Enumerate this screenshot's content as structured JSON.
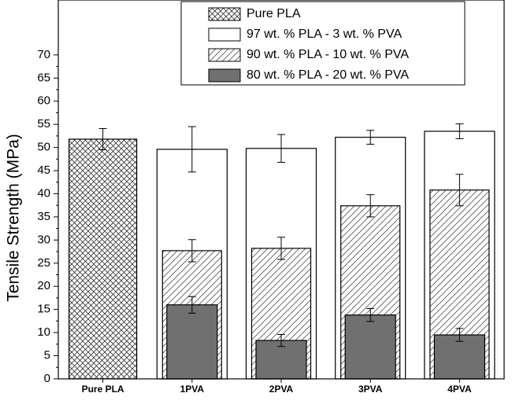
{
  "chart_data": {
    "type": "bar",
    "y_label": "Tensile Strength (MPa)",
    "categories": [
      "Pure PLA",
      "1PVA",
      "2PVA",
      "3PVA",
      "4PVA"
    ],
    "series": [
      {
        "name": "Pure PLA",
        "color": "#ffffff",
        "pattern": "crosshatch",
        "values": [
          51.8,
          null,
          null,
          null,
          null
        ],
        "errors": [
          2.3,
          null,
          null,
          null,
          null
        ]
      },
      {
        "name": "97 wt. % PLA - 3 wt. % PVA",
        "color": "#ffffff",
        "pattern": "none",
        "values": [
          null,
          49.6,
          49.8,
          52.2,
          53.5
        ],
        "errors": [
          null,
          4.9,
          3.0,
          1.5,
          1.6
        ]
      },
      {
        "name": "90 wt. % PLA - 10 wt. % PVA",
        "color": "#ffffff",
        "pattern": "diagonal",
        "values": [
          null,
          27.7,
          28.2,
          37.4,
          40.8
        ],
        "errors": [
          null,
          2.4,
          2.4,
          2.4,
          3.4
        ]
      },
      {
        "name": "80 wt. % PLA - 20 wt. % PVA",
        "color": "#707070",
        "pattern": "none",
        "values": [
          null,
          16.0,
          8.3,
          13.8,
          9.5
        ],
        "errors": [
          null,
          1.8,
          1.3,
          1.4,
          1.4
        ]
      }
    ],
    "ylim": [
      0,
      80
    ],
    "yticks": [
      0,
      5,
      10,
      15,
      20,
      25,
      30,
      35,
      40,
      45,
      50,
      55,
      60,
      65,
      70
    ],
    "legend": "top"
  }
}
